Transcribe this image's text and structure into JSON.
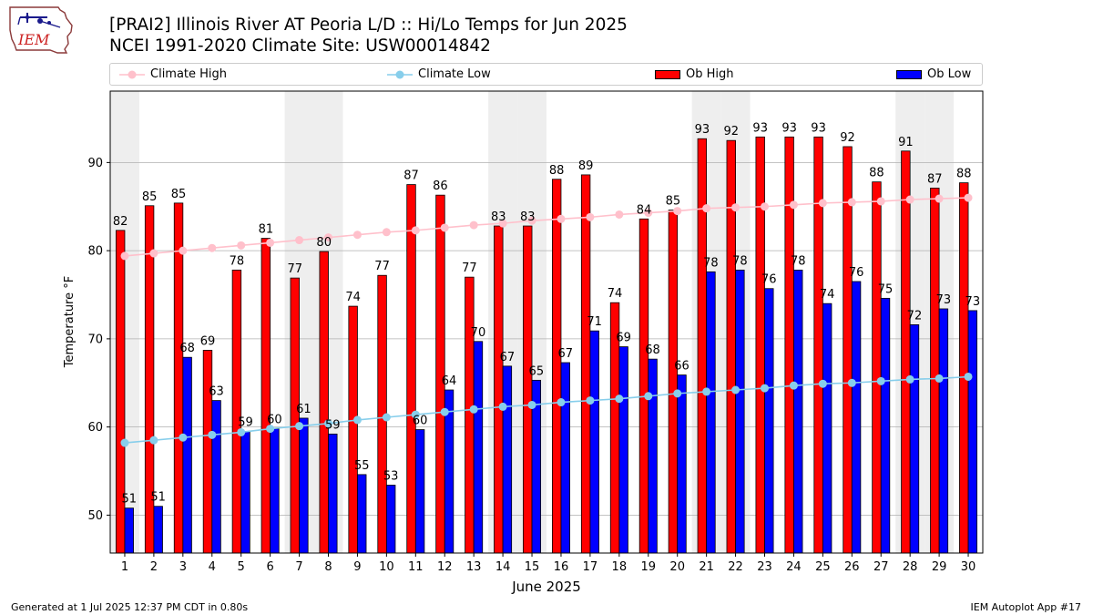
{
  "header": {
    "title_line1": "[PRAI2] Illinois River  AT Peoria L/D :: Hi/Lo Temps for Jun 2025",
    "title_line2": "NCEI 1991-2020 Climate Site: USW00014842"
  },
  "logo": {
    "text": "IEM"
  },
  "legend": {
    "climate_high": "Climate High",
    "climate_low": "Climate Low",
    "ob_high": "Ob High",
    "ob_low": "Ob Low"
  },
  "footer": {
    "generated": "Generated at 1 Jul 2025 12:37 PM CDT in 0.80s",
    "app": "IEM Autoplot App #17"
  },
  "colors": {
    "ob_high": "#ff0000",
    "ob_low": "#0000ff",
    "climate_high": "#ffc0cb",
    "climate_low": "#87ceeb",
    "weekend_band": "#eeeeee",
    "grid": "#b0b0b0"
  },
  "chart_data": {
    "type": "bar",
    "xlabel": "June 2025",
    "ylabel": "Temperature °F",
    "xlim": [
      0.5,
      30.5
    ],
    "ylim": [
      45.7,
      98.1
    ],
    "yticks": [
      50,
      60,
      70,
      80,
      90
    ],
    "grid": "horizontal",
    "legend_position": "top",
    "categories": [
      "1",
      "2",
      "3",
      "4",
      "5",
      "6",
      "7",
      "8",
      "9",
      "10",
      "11",
      "12",
      "13",
      "14",
      "15",
      "16",
      "17",
      "18",
      "19",
      "20",
      "21",
      "22",
      "23",
      "24",
      "25",
      "26",
      "27",
      "28",
      "29",
      "30"
    ],
    "weekend_days": [
      1,
      7,
      8,
      14,
      15,
      21,
      22,
      28,
      29
    ],
    "series": [
      {
        "name": "Ob High",
        "type": "bar",
        "values": [
          82,
          85,
          85,
          69,
          78,
          81,
          77,
          80,
          74,
          77,
          87,
          86,
          77,
          83,
          83,
          88,
          89,
          74,
          84,
          85,
          93,
          92,
          93,
          93,
          93,
          92,
          88,
          91,
          87,
          88
        ],
        "plotted": [
          82.3,
          85.1,
          85.4,
          68.7,
          77.8,
          81.4,
          76.9,
          79.9,
          73.7,
          77.2,
          87.5,
          86.3,
          77.0,
          82.8,
          82.8,
          88.1,
          88.6,
          74.1,
          83.6,
          84.6,
          92.7,
          92.5,
          92.9,
          92.9,
          92.9,
          91.8,
          87.8,
          91.3,
          87.1,
          87.7
        ]
      },
      {
        "name": "Ob Low",
        "type": "bar",
        "values": [
          51,
          51,
          68,
          63,
          59,
          60,
          61,
          59,
          55,
          53,
          60,
          64,
          70,
          67,
          65,
          67,
          71,
          69,
          68,
          66,
          78,
          78,
          76,
          78,
          74,
          76,
          75,
          72,
          73,
          73
        ],
        "plotted": [
          50.8,
          51.0,
          67.9,
          63.0,
          59.5,
          59.8,
          61.0,
          59.2,
          54.6,
          53.4,
          59.7,
          64.2,
          69.7,
          66.9,
          65.3,
          67.3,
          70.9,
          69.1,
          67.7,
          65.9,
          77.6,
          77.8,
          75.7,
          77.8,
          74.0,
          76.5,
          74.6,
          71.6,
          73.4,
          73.2
        ]
      },
      {
        "name": "Climate High",
        "type": "line",
        "values": [
          79.4,
          79.7,
          80.0,
          80.3,
          80.6,
          80.9,
          81.2,
          81.5,
          81.8,
          82.1,
          82.3,
          82.6,
          82.9,
          83.1,
          83.4,
          83.6,
          83.8,
          84.1,
          84.3,
          84.5,
          84.8,
          84.9,
          85.0,
          85.2,
          85.4,
          85.5,
          85.6,
          85.8,
          85.9,
          86.0
        ]
      },
      {
        "name": "Climate Low",
        "type": "line",
        "values": [
          58.2,
          58.5,
          58.8,
          59.1,
          59.4,
          59.8,
          60.1,
          60.4,
          60.8,
          61.1,
          61.4,
          61.7,
          62.0,
          62.3,
          62.5,
          62.8,
          63.0,
          63.2,
          63.5,
          63.8,
          64.0,
          64.2,
          64.4,
          64.7,
          64.9,
          65.0,
          65.2,
          65.4,
          65.5,
          65.7
        ]
      }
    ]
  }
}
